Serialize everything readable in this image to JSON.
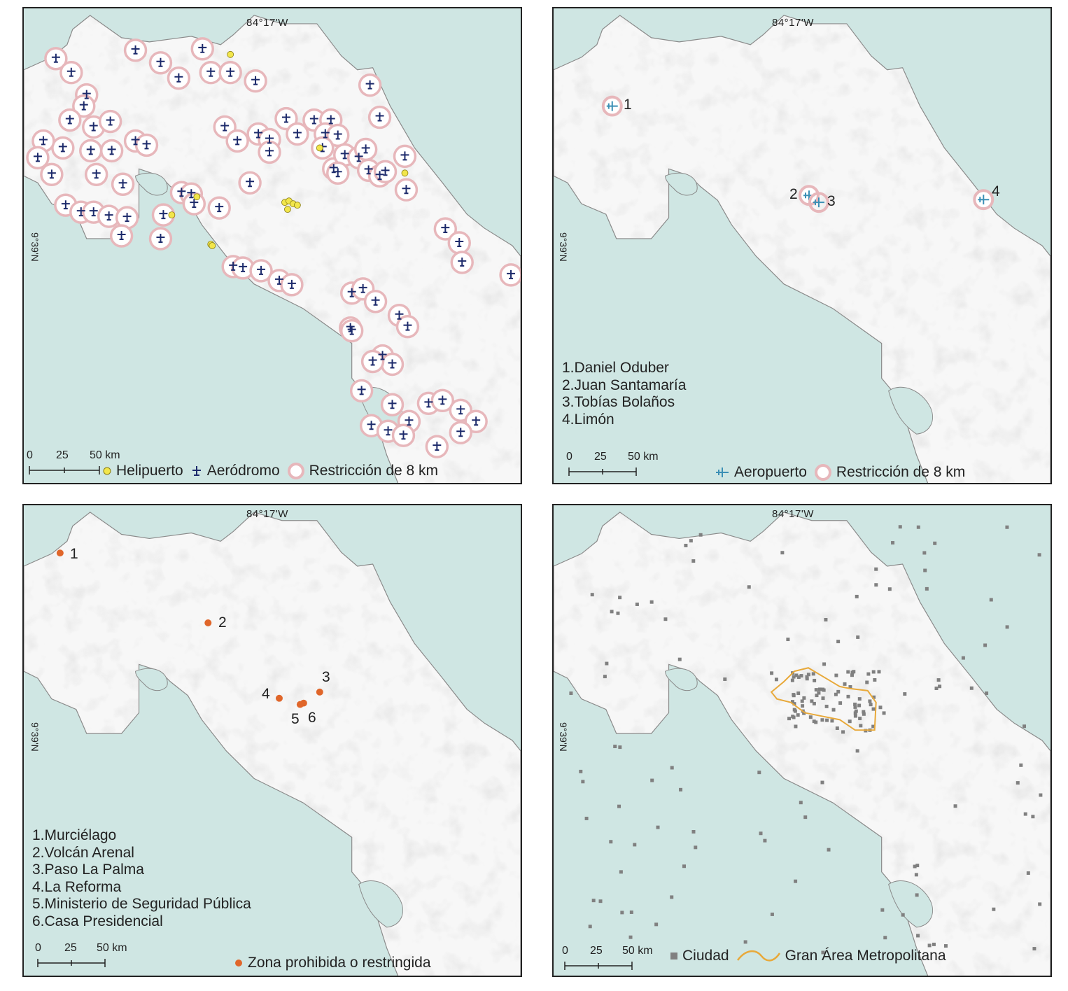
{
  "panels": [
    {
      "id": "aerodromos",
      "lon_label": "84°17'W",
      "lat_label": "9°39'N",
      "scale": [
        "0",
        "25",
        "50 km"
      ],
      "legend": [
        {
          "symbol": "helipuerto-icon",
          "label": "Helipuerto",
          "color": "#f2e64b"
        },
        {
          "symbol": "aerodromo-icon",
          "label": "Aeródromo",
          "color": "#1c2a6b"
        },
        {
          "symbol": "restriccion-ring-icon",
          "label": "Restricción de 8 km",
          "color": "#e7b7bb"
        }
      ]
    },
    {
      "id": "aeropuertos",
      "lon_label": "84°17'W",
      "lat_label": "9°39'N",
      "scale": [
        "0",
        "25",
        "50 km"
      ],
      "list": [
        "1.Daniel Oduber",
        "2.Juan Santamaría",
        "3.Tobías Bolaños",
        "4.Limón"
      ],
      "numbers": [
        "1",
        "2",
        "3",
        "4"
      ],
      "legend": [
        {
          "symbol": "aeropuerto-icon",
          "label": "Aeropuerto",
          "color": "#3b8fb5"
        },
        {
          "symbol": "restriccion-ring-icon",
          "label": "Restricción de 8 km",
          "color": "#e7b7bb"
        }
      ]
    },
    {
      "id": "zonas",
      "lon_label": "84°17'W",
      "lat_label": "9°39'N",
      "scale": [
        "0",
        "25",
        "50 km"
      ],
      "list": [
        "1.Murciélago",
        "2.Volcán Arenal",
        "3.Paso La Palma",
        "4.La Reforma",
        "5.Ministerio de Seguridad Pública",
        "6.Casa Presidencial"
      ],
      "numbers": [
        "1",
        "2",
        "3",
        "4",
        "5",
        "6"
      ],
      "legend": [
        {
          "symbol": "zona-dot-icon",
          "label": "Zona prohibida o restringida",
          "color": "#e0662a"
        }
      ]
    },
    {
      "id": "ciudades",
      "lon_label": "84°17'W",
      "lat_label": "9°39'N",
      "scale": [
        "0",
        "25",
        "50 km"
      ],
      "legend": [
        {
          "symbol": "ciudad-square-icon",
          "label": "Ciudad",
          "color": "#808080"
        },
        {
          "symbol": "gam-line-icon",
          "label": "Gran Área Metropolitana",
          "color": "#e8a93a"
        }
      ]
    }
  ]
}
